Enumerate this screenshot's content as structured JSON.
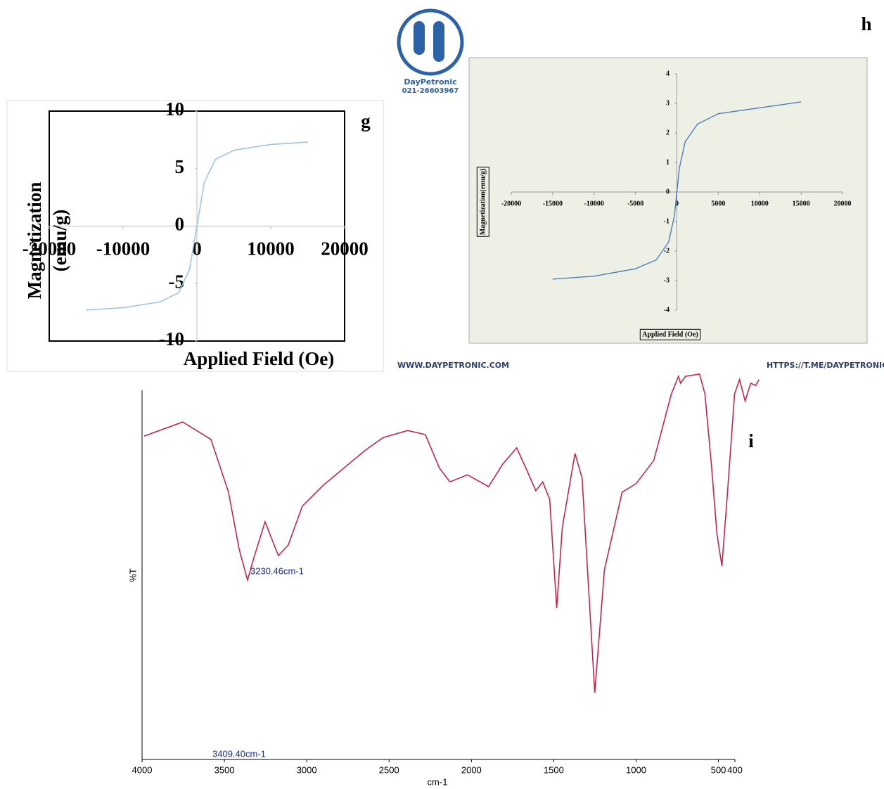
{
  "chart_data": [
    {
      "type": "line",
      "panel": "g",
      "xlabel": "Applied Field (Oe)",
      "ylabel": [
        "Magnetization",
        "(emu/g)"
      ],
      "x": [
        -15000,
        -10000,
        -5000,
        -2500,
        -1000,
        -400,
        0,
        400,
        1000,
        2500,
        5000,
        10000,
        15000
      ],
      "series": [
        {
          "color": "#9dc3e6",
          "values": [
            -7.3,
            -7.1,
            -6.6,
            -5.8,
            -3.8,
            -1.5,
            0,
            1.5,
            3.8,
            5.8,
            6.6,
            7.1,
            7.3
          ]
        }
      ],
      "xlim": [
        -20000,
        20000
      ],
      "xticks": [
        -20000,
        -10000,
        0,
        10000,
        20000
      ],
      "ylim": [
        -10,
        10
      ],
      "yticks": [
        -10,
        -5,
        0,
        5,
        10
      ]
    },
    {
      "type": "line",
      "panel": "h",
      "xlabel": "Applied Field (Oe)",
      "ylabel": [
        "Magnetization(emu/g)"
      ],
      "x": [
        -15000,
        -10000,
        -5000,
        -2500,
        -1000,
        -300,
        0,
        300,
        1000,
        2500,
        5000,
        10000,
        15000
      ],
      "series": [
        {
          "color": "#4a7ebb",
          "values": [
            -2.95,
            -2.85,
            -2.6,
            -2.3,
            -1.7,
            -0.8,
            0,
            0.8,
            1.7,
            2.3,
            2.65,
            2.85,
            3.05
          ]
        }
      ],
      "xlim": [
        -20000,
        20000
      ],
      "xticks": [
        -20000,
        -15000,
        -10000,
        -5000,
        0,
        5000,
        10000,
        15000,
        20000
      ],
      "ylim": [
        -4,
        4
      ],
      "yticks": [
        -4,
        -3,
        -2,
        -1,
        0,
        1,
        2,
        3,
        4
      ]
    },
    {
      "type": "line",
      "panel": "i",
      "xlabel": "cm-1",
      "ylabel": [
        "%T"
      ],
      "annotations": [
        "3230.46cm-1",
        "3409.40cm-1"
      ],
      "x": [
        3987,
        3753,
        3582,
        3475,
        3411,
        3360,
        3317,
        3253,
        3198,
        3172,
        3112,
        3027,
        2899,
        2643,
        2536,
        2387,
        2280,
        2195,
        2131,
        2024,
        1896,
        1810,
        1725,
        1661,
        1609,
        1567,
        1525,
        1482,
        1448,
        1371,
        1328,
        1251,
        1192,
        1085,
        1000,
        893,
        786,
        743,
        730,
        700,
        615,
        582,
        543,
        509,
        479,
        445,
        402,
        372,
        338,
        304,
        274,
        253
      ],
      "series": [
        {
          "color": "#c8244a",
          "values": [
            87.6,
            91.4,
            86.7,
            72.4,
            57.1,
            48.6,
            55.2,
            64.4,
            58.1,
            55.2,
            58.1,
            68.6,
            74.3,
            83.8,
            87.2,
            89.1,
            88.0,
            79.0,
            75.2,
            77.1,
            73.9,
            80.0,
            84.4,
            78.1,
            72.8,
            75.2,
            70.5,
            41.0,
            62.9,
            82.9,
            76.2,
            18.1,
            51.4,
            72.4,
            74.7,
            81.0,
            99.0,
            103.8,
            101.9,
            103.8,
            104.4,
            99.0,
            80.0,
            61.0,
            52.4,
            72.4,
            99.0,
            102.9,
            97.1,
            101.9,
            101.3,
            102.9
          ]
        }
      ],
      "xlim": [
        4000,
        400
      ],
      "xticks": [
        4000,
        3500,
        3000,
        2500,
        2000,
        1500,
        1000,
        500,
        400
      ],
      "ylim": [
        0,
        105
      ]
    }
  ],
  "watermark": {
    "name": "DayPetronic",
    "phone": "021-26603967",
    "site": "WWW.DAYPETRONIC.COM",
    "telegram": "HTTPS://T.ME/DAYPETRONIC"
  }
}
